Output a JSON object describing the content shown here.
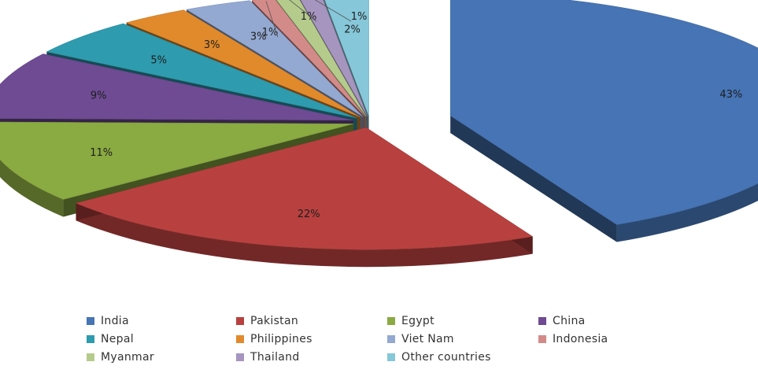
{
  "chart_data": {
    "type": "pie",
    "style": "3d-exploded",
    "legend_position": "bottom",
    "slices": [
      {
        "name": "India",
        "value": 43,
        "label": "43%",
        "color": "#4674B5"
      },
      {
        "name": "Pakistan",
        "value": 22,
        "label": "22%",
        "color": "#B8413F"
      },
      {
        "name": "Egypt",
        "value": 11,
        "label": "11%",
        "color": "#8AAA42"
      },
      {
        "name": "China",
        "value": 9,
        "label": "9%",
        "color": "#6E4B93"
      },
      {
        "name": "Nepal",
        "value": 5,
        "label": "5%",
        "color": "#2E9BAE"
      },
      {
        "name": "Philippines",
        "value": 3,
        "label": "3%",
        "color": "#E18A2C"
      },
      {
        "name": "Viet Nam",
        "value": 3,
        "label": "3%",
        "color": "#93A9D2"
      },
      {
        "name": "Indonesia",
        "value": 1,
        "label": "1%",
        "color": "#D38B89"
      },
      {
        "name": "Myanmar",
        "value": 1,
        "label": "1%",
        "color": "#B5CB8C"
      },
      {
        "name": "Thailand",
        "value": 1,
        "label": "1%",
        "color": "#A595BF"
      },
      {
        "name": "Other countries",
        "value": 2,
        "label": "2%",
        "color": "#86C7D9"
      }
    ]
  }
}
